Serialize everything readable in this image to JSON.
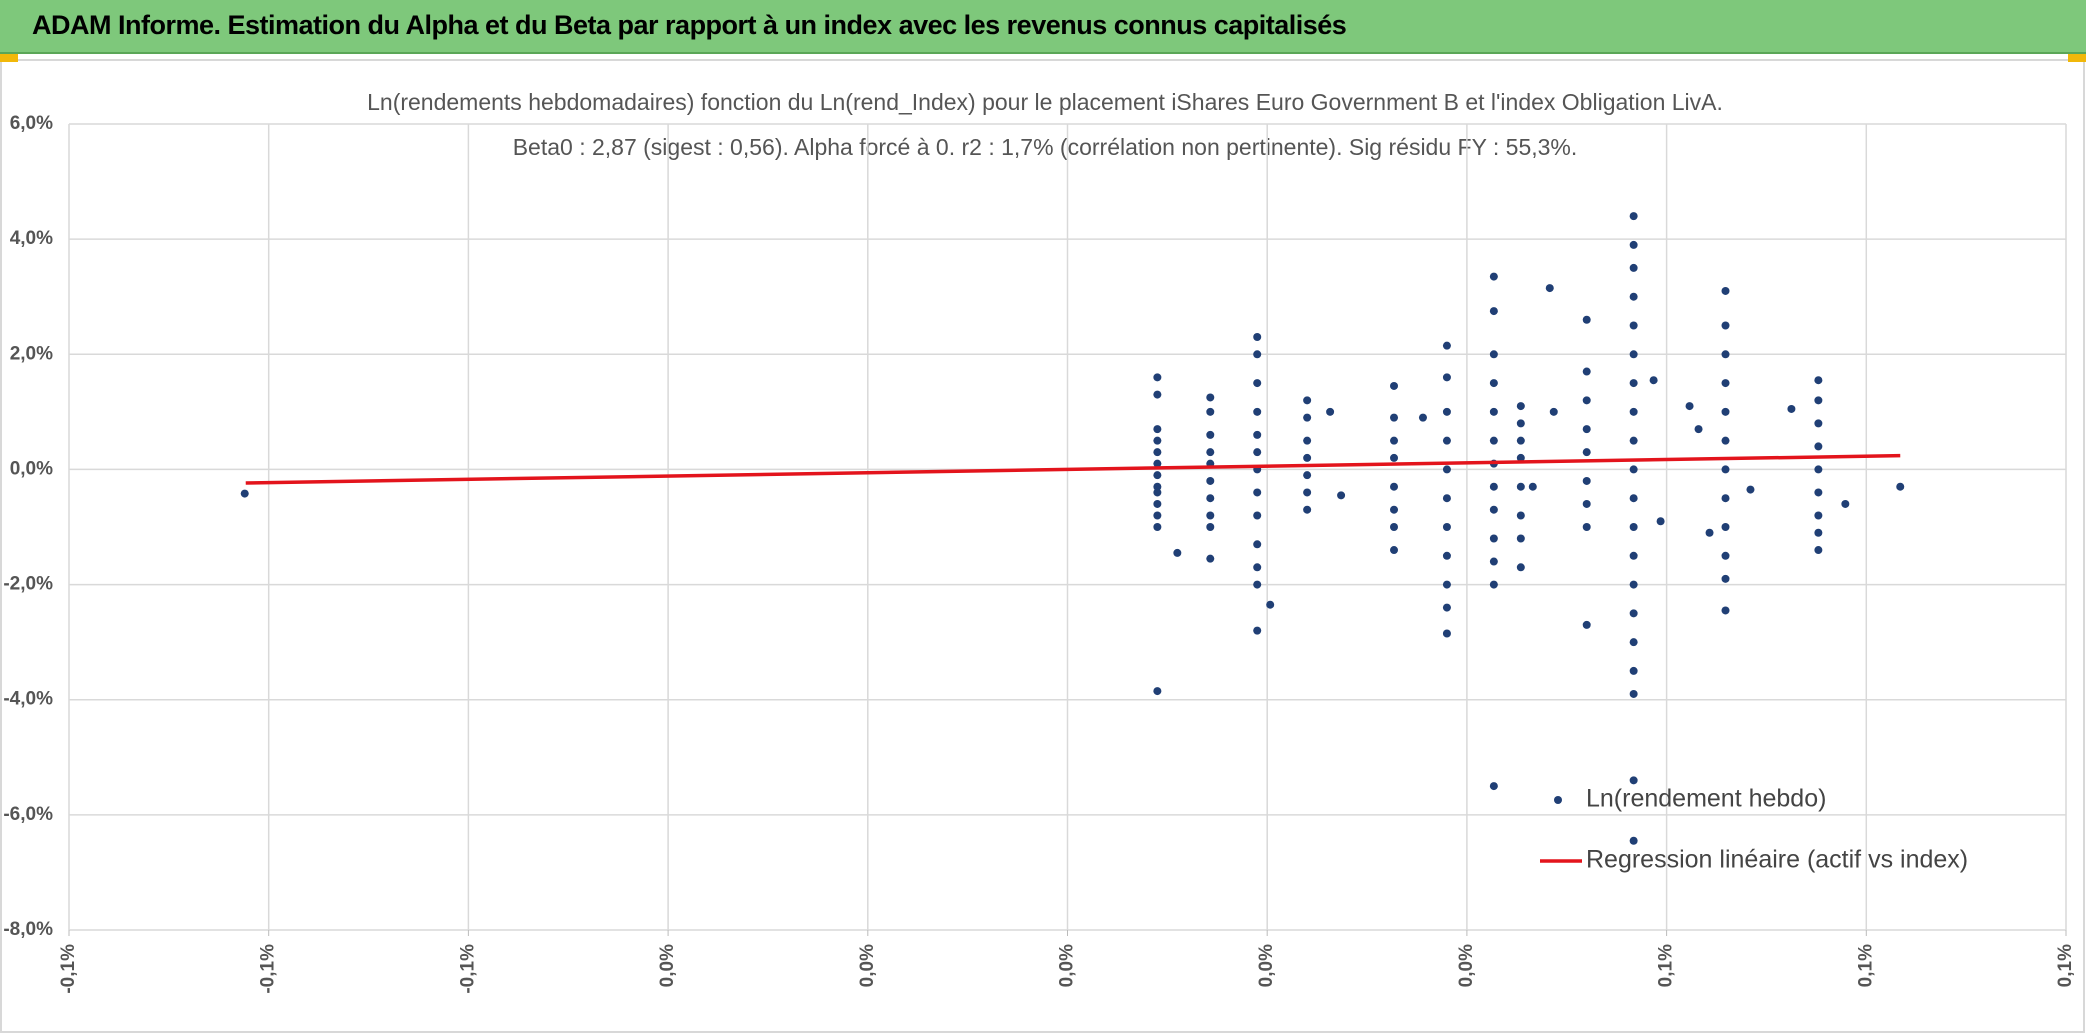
{
  "header": {
    "title": "ADAM Informe. Estimation du Alpha et du Beta par rapport à un index avec les revenus connus capitalisés"
  },
  "chart_data": {
    "type": "scatter",
    "title": "Ln(rendements hebdomadaires) fonction du Ln(rend_Index) pour le placement iShares Euro Government B et l'index Obligation LivA.",
    "subtitle": "Beta0 : 2,87 (sigest : 0,56). Alpha forcé à 0. r2 : 1,7% (corrélation non pertinente). Sig résidu FY : 55,3%.",
    "xlim": [
      -0.1,
      0.1
    ],
    "xticks": [
      {
        "value": -0.1,
        "label": "-0,1%"
      },
      {
        "value": -0.08,
        "label": "-0,1%"
      },
      {
        "value": -0.06,
        "label": "-0,1%"
      },
      {
        "value": -0.04,
        "label": "0,0%"
      },
      {
        "value": -0.02,
        "label": "0,0%"
      },
      {
        "value": 0,
        "label": "0,0%"
      },
      {
        "value": 0.02,
        "label": "0,0%"
      },
      {
        "value": 0.04,
        "label": "0,0%"
      },
      {
        "value": 0.06,
        "label": "0,1%"
      },
      {
        "value": 0.08,
        "label": "0,1%"
      },
      {
        "value": 0.1,
        "label": "0,1%"
      }
    ],
    "ylim": [
      -8,
      6
    ],
    "yticks": [
      {
        "value": -8,
        "label": "-8,0%"
      },
      {
        "value": -6,
        "label": "-6,0%"
      },
      {
        "value": -4,
        "label": "-4,0%"
      },
      {
        "value": -2,
        "label": "-2,0%"
      },
      {
        "value": 0,
        "label": "0,0%"
      },
      {
        "value": 2,
        "label": "2,0%"
      },
      {
        "value": 4,
        "label": "4,0%"
      },
      {
        "value": 6,
        "label": "6,0%"
      }
    ],
    "grid": true,
    "legend": "lower right",
    "series": [
      {
        "name": "Ln(rendement hebdo)",
        "type": "scatter",
        "color": "#203f75",
        "x": [
          0.009,
          0.009,
          0.009,
          0.009,
          0.009,
          0.009,
          0.009,
          0.009,
          0.009,
          0.009,
          0.009,
          0.009,
          0.009,
          0.0143,
          0.0143,
          0.0143,
          0.0143,
          0.0143,
          0.0143,
          0.0143,
          0.0143,
          0.0143,
          0.0143,
          0.019,
          0.019,
          0.019,
          0.019,
          0.019,
          0.019,
          0.019,
          0.019,
          0.019,
          0.019,
          0.019,
          0.019,
          0.019,
          0.024,
          0.024,
          0.024,
          0.024,
          0.024,
          0.024,
          0.024,
          0.0327,
          0.0327,
          0.0327,
          0.0327,
          0.0327,
          0.0327,
          0.0327,
          0.0327,
          0.038,
          0.038,
          0.038,
          0.038,
          0.038,
          0.038,
          0.038,
          0.038,
          0.038,
          0.038,
          0.038,
          0.0427,
          0.0427,
          0.0427,
          0.0427,
          0.0427,
          0.0427,
          0.0427,
          0.0427,
          0.0427,
          0.0427,
          0.0427,
          0.0427,
          0.0427,
          0.0454,
          0.0454,
          0.0454,
          0.0454,
          0.0454,
          0.0454,
          0.0454,
          0.0454,
          0.052,
          0.052,
          0.052,
          0.052,
          0.052,
          0.052,
          0.052,
          0.052,
          0.052,
          0.0567,
          0.0567,
          0.0567,
          0.0567,
          0.0567,
          0.0567,
          0.0567,
          0.0567,
          0.0567,
          0.0567,
          0.0567,
          0.0567,
          0.0567,
          0.0567,
          0.0567,
          0.0567,
          0.0567,
          0.0567,
          0.0567,
          0.0567,
          0.0659,
          0.0659,
          0.0659,
          0.0659,
          0.0659,
          0.0659,
          0.0659,
          0.0659,
          0.0659,
          0.0659,
          0.0659,
          0.0659,
          0.0752,
          0.0752,
          0.0752,
          0.0752,
          0.0752,
          0.0752,
          0.0752,
          0.0752,
          0.0752,
          0.0483,
          0.0587,
          0.0594,
          0.0623,
          0.0725,
          0.0779,
          0.011,
          0.0203,
          0.0263,
          0.0274,
          0.0632,
          0.0643,
          0.0684,
          0.0487,
          0.0356,
          0.0466,
          -0.0824,
          0.0834
        ],
        "values": [
          1.6,
          1.3,
          0.7,
          0.5,
          0.3,
          0.1,
          -0.1,
          -0.3,
          -0.4,
          -0.6,
          -0.8,
          -1.0,
          -3.85,
          1.25,
          1.0,
          0.6,
          0.3,
          0.1,
          -0.2,
          -0.5,
          -0.8,
          -1.0,
          -1.55,
          2.3,
          2.0,
          1.5,
          1.0,
          0.6,
          0.3,
          0.0,
          -0.4,
          -0.8,
          -1.3,
          -1.7,
          -2.0,
          -2.8,
          1.2,
          0.9,
          0.5,
          0.2,
          -0.1,
          -0.4,
          -0.7,
          1.45,
          0.9,
          0.5,
          0.2,
          -0.3,
          -0.7,
          -1.0,
          -1.4,
          2.15,
          1.6,
          1.0,
          0.5,
          0.0,
          -0.5,
          -1.0,
          -1.5,
          -2.0,
          -2.4,
          -2.85,
          3.35,
          2.75,
          2.0,
          1.5,
          1.0,
          0.5,
          0.1,
          -0.3,
          -0.7,
          -1.2,
          -1.6,
          -2.0,
          -5.5,
          1.1,
          0.8,
          0.5,
          0.2,
          -0.3,
          -0.8,
          -1.2,
          -1.7,
          2.6,
          1.7,
          1.2,
          0.7,
          0.3,
          -0.2,
          -0.6,
          -1.0,
          -2.7,
          4.4,
          3.9,
          3.5,
          3.0,
          2.5,
          2.0,
          1.5,
          1.0,
          0.5,
          0.0,
          -0.5,
          -1.0,
          -1.5,
          -2.0,
          -2.5,
          -3.0,
          -3.5,
          -3.9,
          -5.4,
          -6.45,
          3.1,
          2.5,
          2.0,
          1.5,
          1.0,
          0.5,
          0.0,
          -0.5,
          -1.0,
          -1.5,
          -1.9,
          -2.45,
          1.55,
          1.2,
          0.8,
          0.4,
          0.0,
          -0.4,
          -0.8,
          -1.1,
          -1.4,
          3.15,
          1.55,
          -0.9,
          1.1,
          1.05,
          -0.6,
          -1.45,
          -2.35,
          1.0,
          -0.45,
          0.7,
          -1.1,
          -0.35,
          1.0,
          0.9,
          -0.3,
          -0.42,
          -0.3
        ]
      },
      {
        "name": "Regression linéaire (actif vs index)",
        "type": "line",
        "color": "#e3141c",
        "x": [
          -0.0823,
          0.0834
        ],
        "values": [
          -0.236,
          0.239
        ]
      }
    ]
  }
}
